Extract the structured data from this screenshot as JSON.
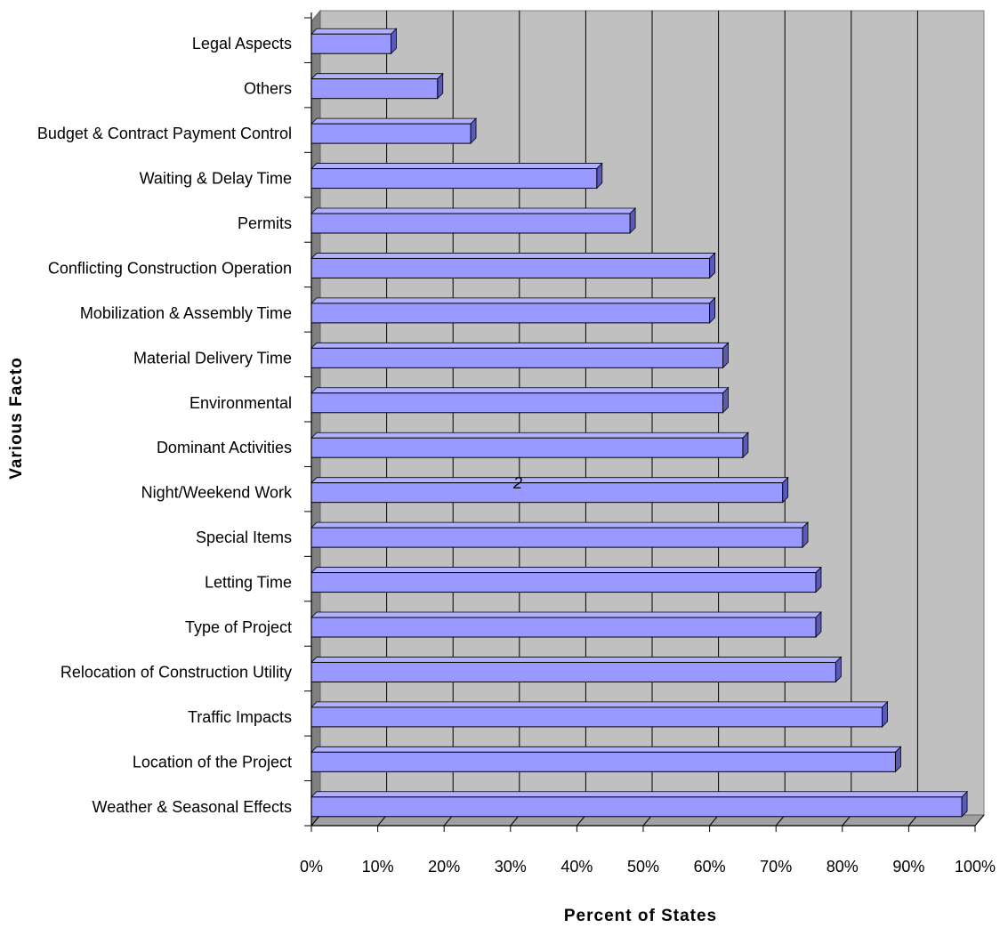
{
  "chart_data": {
    "type": "bar",
    "orientation": "horizontal",
    "three_d": true,
    "categories": [
      "Legal Aspects",
      "Others",
      "Budget & Contract Payment Control",
      "Waiting & Delay Time",
      "Permits",
      "Conflicting Construction Operation",
      "Mobilization & Assembly Time",
      "Material Delivery Time",
      "Environmental",
      "Dominant Activities",
      "Night/Weekend Work",
      "Special Items",
      "Letting Time",
      "Type of Project",
      "Relocation of Construction Utility",
      "Traffic Impacts",
      "Location of the Project",
      "Weather & Seasonal Effects"
    ],
    "values": [
      12,
      19,
      24,
      43,
      48,
      60,
      60,
      62,
      62,
      65,
      71,
      74,
      76,
      76,
      79,
      86,
      88,
      98
    ],
    "xlim": [
      0,
      100
    ],
    "x_ticks": [
      "0%",
      "10%",
      "20%",
      "30%",
      "40%",
      "50%",
      "60%",
      "70%",
      "80%",
      "90%",
      "100%"
    ],
    "xlabel": "Percent of States",
    "ylabel": "Various Facto",
    "annotation": "2",
    "grid": "vertical",
    "legend": "none",
    "colors": {
      "bar_face": "#9999ff",
      "bar_top": "#b0b0ff",
      "bar_side": "#5a5ab8",
      "plot_back": "#c0c0c0",
      "plot_floor": "#a0a0a0",
      "plot_wall": "#808080",
      "gridline": "#000000"
    }
  }
}
